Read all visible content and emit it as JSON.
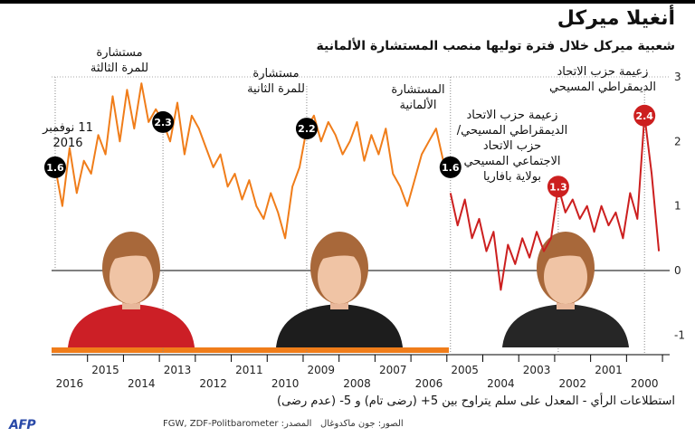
{
  "header": {
    "title": "أنغيلا ميركل",
    "subtitle": "شعبية ميركل خلال فترة توليها منصب المستشارة الألمانية"
  },
  "footer": {
    "note_line1": "استطلاعات الرأي - المعدل على سلم يتراوح بين 5+ (رضى تام) و 5- (عدم رضى)",
    "note_line2": "",
    "photo_credit": "الصور: جون ماكدوغال",
    "source": "المصدر: FGW, ZDF-Politbarometer",
    "logo_text": "AFP"
  },
  "chart_data": {
    "type": "line",
    "title": "أنغيلا ميركل",
    "subtitle": "شعبية ميركل خلال فترة توليها منصب المستشارة الألمانية",
    "xlabel": "",
    "ylabel": "",
    "y_ticks": [
      3,
      2,
      1,
      0,
      -1
    ],
    "ylim": [
      -1.2,
      3.1
    ],
    "x_axis": "time reversed (2016 on the left, 2000 on the right)",
    "x_ticks": [
      "2016",
      "2015",
      "2014",
      "2013",
      "2012",
      "2011",
      "2010",
      "2009",
      "2008",
      "2007",
      "2006",
      "2005",
      "2004",
      "2003",
      "2002",
      "2001",
      "2000"
    ],
    "grid": "dotted vertical lines at key dates",
    "series": [
      {
        "period": "as chancellor",
        "color": "#f07d1a",
        "x": [
          2016.9,
          2016.7,
          2016.5,
          2016.3,
          2016.1,
          2015.9,
          2015.7,
          2015.5,
          2015.3,
          2015.1,
          2014.9,
          2014.7,
          2014.5,
          2014.3,
          2014.1,
          2013.9,
          2013.7,
          2013.5,
          2013.3,
          2013.1,
          2012.9,
          2012.7,
          2012.5,
          2012.3,
          2012.1,
          2011.9,
          2011.7,
          2011.5,
          2011.3,
          2011.1,
          2010.9,
          2010.7,
          2010.5,
          2010.3,
          2010.1,
          2009.9,
          2009.7,
          2009.5,
          2009.3,
          2009.1,
          2008.9,
          2008.7,
          2008.5,
          2008.3,
          2008.1,
          2007.9,
          2007.7,
          2007.5,
          2007.3,
          2007.1,
          2006.9,
          2006.7,
          2006.5,
          2006.3,
          2006.1,
          2005.9
        ],
        "values": [
          1.6,
          1.0,
          1.9,
          1.2,
          1.7,
          1.5,
          2.1,
          1.8,
          2.7,
          2.0,
          2.8,
          2.2,
          2.9,
          2.3,
          2.5,
          2.3,
          2.0,
          2.6,
          1.8,
          2.4,
          2.2,
          1.9,
          1.6,
          1.8,
          1.3,
          1.5,
          1.1,
          1.4,
          1.0,
          0.8,
          1.2,
          0.9,
          0.5,
          1.3,
          1.6,
          2.2,
          2.4,
          2.0,
          2.3,
          2.1,
          1.8,
          2.0,
          2.3,
          1.7,
          2.1,
          1.8,
          2.2,
          1.5,
          1.3,
          1.0,
          1.4,
          1.8,
          2.0,
          2.2,
          1.7,
          1.6
        ]
      },
      {
        "period": "as party leader",
        "color": "#cc1f1f",
        "x": [
          2005.9,
          2005.7,
          2005.5,
          2005.3,
          2005.1,
          2004.9,
          2004.7,
          2004.5,
          2004.3,
          2004.1,
          2003.9,
          2003.7,
          2003.5,
          2003.3,
          2003.1,
          2002.9,
          2002.7,
          2002.5,
          2002.3,
          2002.1,
          2001.9,
          2001.7,
          2001.5,
          2001.3,
          2001.1,
          2000.9,
          2000.7,
          2000.5,
          2000.3,
          2000.1
        ],
        "values": [
          1.2,
          0.7,
          1.1,
          0.5,
          0.8,
          0.3,
          0.6,
          -0.3,
          0.4,
          0.1,
          0.5,
          0.2,
          0.6,
          0.3,
          0.5,
          1.3,
          0.9,
          1.1,
          0.8,
          1.0,
          0.6,
          1.0,
          0.7,
          0.9,
          0.5,
          1.2,
          0.8,
          2.4,
          1.5,
          0.3
        ]
      }
    ],
    "markers": [
      {
        "value": "1.6",
        "x": 2016.9,
        "y": 1.6,
        "color": "#000000"
      },
      {
        "value": "2.3",
        "x": 2013.9,
        "y": 2.3,
        "color": "#000000"
      },
      {
        "value": "2.2",
        "x": 2009.9,
        "y": 2.2,
        "color": "#000000"
      },
      {
        "value": "1.6",
        "x": 2005.9,
        "y": 1.6,
        "color": "#000000"
      },
      {
        "value": "1.3",
        "x": 2002.9,
        "y": 1.3,
        "color": "#cc1f1f"
      },
      {
        "value": "2.4",
        "x": 2000.5,
        "y": 2.4,
        "color": "#cc1f1f"
      }
    ],
    "annotations": [
      {
        "text": "11 نوفمبر 2016"
      },
      {
        "text": "مستشارة للمرة الثالثة"
      },
      {
        "text": "مستشارة للمرة الثانية"
      },
      {
        "text": "المستشارة الألمانية"
      },
      {
        "text": "زعيمة حزب الاتحاد الديمقراطي المسيحي/ حزب الاتحاد الاجتماعي المسيحي بولاية بافاريا"
      },
      {
        "text": "زعيمة حزب الاتحاد الديمقراطي المسيحي"
      }
    ]
  }
}
